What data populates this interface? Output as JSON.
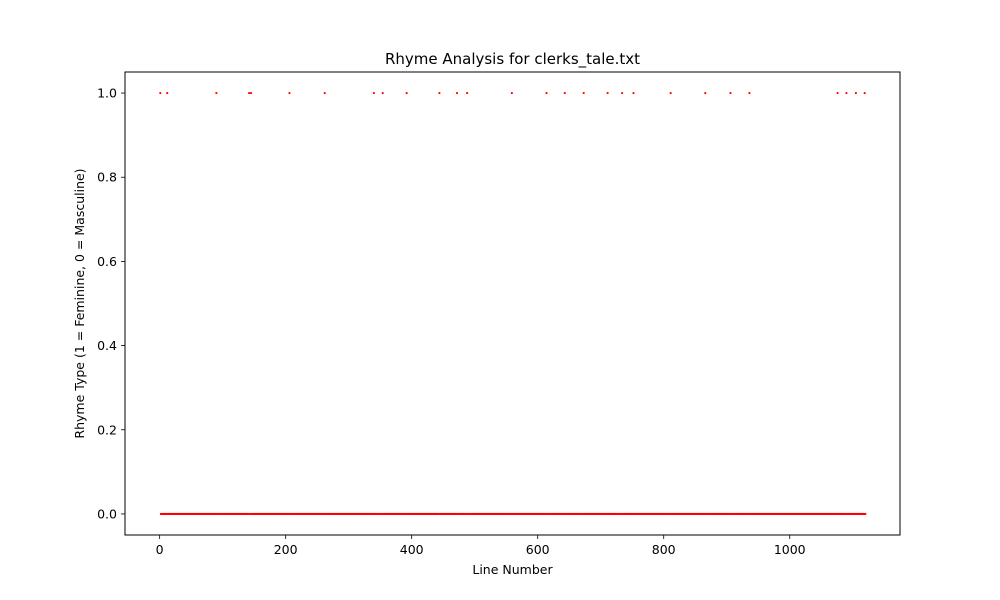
{
  "chart_data": {
    "type": "scatter",
    "title": "Rhyme Analysis for clerks_tale.txt",
    "xlabel": "Line Number",
    "ylabel": "Rhyme Type (1 = Feminine, 0 = Masculine)",
    "xlim": [
      -55,
      1175
    ],
    "ylim": [
      -0.05,
      1.05
    ],
    "xticks": [
      0,
      200,
      400,
      600,
      800,
      1000
    ],
    "xtick_labels": [
      "0",
      "200",
      "400",
      "600",
      "800",
      "1000"
    ],
    "yticks": [
      0.0,
      0.2,
      0.4,
      0.6,
      0.8,
      1.0
    ],
    "ytick_labels": [
      "0.0",
      "0.2",
      "0.4",
      "0.6",
      "0.8",
      "1.0"
    ],
    "grid": false,
    "marker_color": "#ff0000",
    "feminine_lines": [
      1,
      12,
      90,
      142,
      145,
      206,
      262,
      340,
      354,
      392,
      444,
      472,
      488,
      559,
      614,
      643,
      673,
      711,
      734,
      752,
      811,
      866,
      906,
      936,
      1076,
      1090,
      1105,
      1119
    ],
    "masculine_range": [
      1,
      1120
    ]
  }
}
